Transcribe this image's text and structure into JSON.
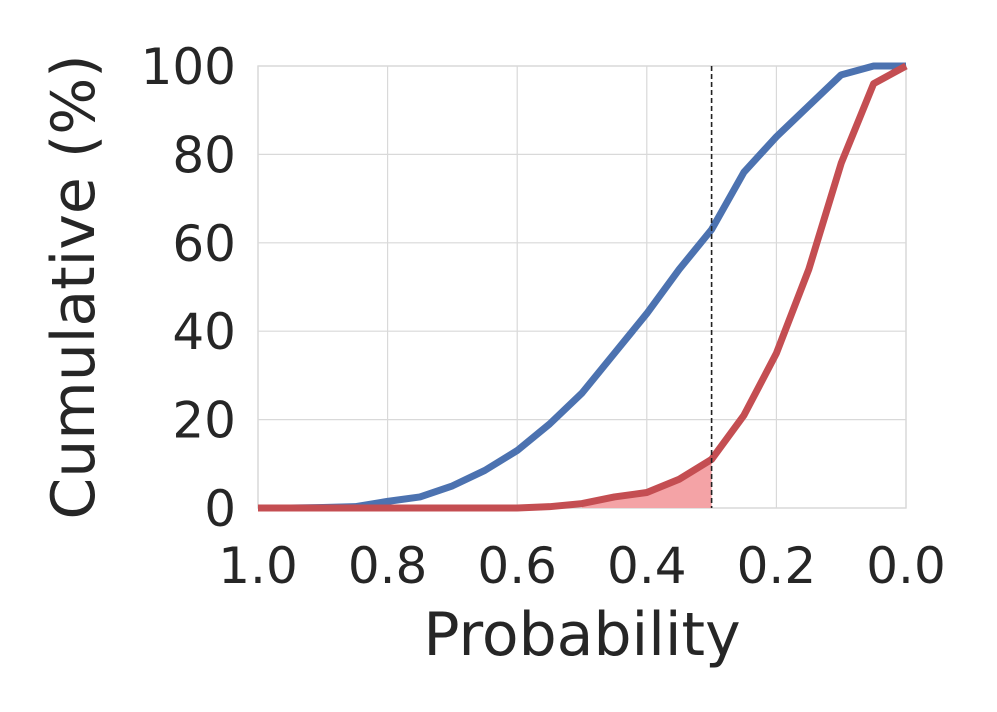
{
  "chart_data": {
    "type": "line",
    "title": "",
    "xlabel": "Probability",
    "ylabel": "Cumulative (%)",
    "xlim": [
      1.0,
      0.0
    ],
    "ylim": [
      0,
      100
    ],
    "x_inverted": true,
    "grid": true,
    "legend": "none",
    "x_ticks": [
      1.0,
      0.8,
      0.6,
      0.4,
      0.2,
      0.0
    ],
    "x_tick_labels": [
      "1.0",
      "0.8",
      "0.6",
      "0.4",
      "0.2",
      "0.0"
    ],
    "y_ticks": [
      0,
      20,
      40,
      60,
      80,
      100
    ],
    "y_tick_labels": [
      "0",
      "20",
      "40",
      "60",
      "80",
      "100"
    ],
    "threshold_x": 0.3,
    "threshold_style": "dashed",
    "series": [
      {
        "color": "#4c72b0",
        "x": [
          1.0,
          0.95,
          0.9,
          0.85,
          0.8,
          0.75,
          0.7,
          0.65,
          0.6,
          0.55,
          0.5,
          0.45,
          0.4,
          0.35,
          0.3,
          0.25,
          0.2,
          0.15,
          0.1,
          0.05,
          0.0
        ],
        "values": [
          0,
          0,
          0.1,
          0.3,
          1.5,
          2.5,
          5,
          8.5,
          13,
          19,
          26,
          35,
          44,
          54,
          63,
          76,
          84,
          91,
          98,
          100,
          100
        ]
      },
      {
        "color": "#c44e52",
        "x": [
          1.0,
          0.95,
          0.9,
          0.85,
          0.8,
          0.75,
          0.7,
          0.65,
          0.6,
          0.55,
          0.5,
          0.45,
          0.4,
          0.35,
          0.3,
          0.25,
          0.2,
          0.15,
          0.1,
          0.05,
          0.0
        ],
        "values": [
          0,
          0,
          0,
          0,
          0,
          0,
          0,
          0,
          0,
          0.3,
          1,
          2.5,
          3.5,
          6.5,
          11,
          21,
          35,
          54,
          78,
          96,
          100
        ]
      }
    ],
    "shaded_region": {
      "series_index": 1,
      "from_x": 0.5,
      "to_x": 0.3,
      "color": "#f4a3a6"
    }
  }
}
